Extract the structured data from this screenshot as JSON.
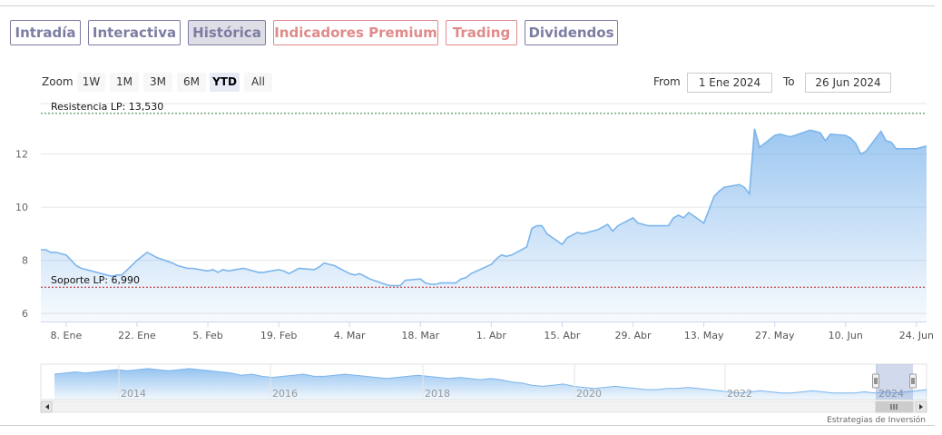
{
  "tabs": [
    {
      "label": "Intradía",
      "color": "#7d7da3",
      "active": false
    },
    {
      "label": "Interactiva",
      "color": "#7d7da3",
      "active": false
    },
    {
      "label": "Histórica",
      "color": "#7d7da3",
      "active": true
    },
    {
      "label": "Indicadores Premium",
      "color": "#e08a8a",
      "active": false
    },
    {
      "label": "Trading",
      "color": "#e08a8a",
      "active": false
    },
    {
      "label": "Dividendos",
      "color": "#7d7da3",
      "active": false
    }
  ],
  "zoom": {
    "label": "Zoom",
    "buttons": [
      "1W",
      "1M",
      "3M",
      "6M",
      "YTD",
      "All"
    ],
    "active": "YTD"
  },
  "range": {
    "from_label": "From",
    "from_value": "1 Ene 2024",
    "to_label": "To",
    "to_value": "26 Jun 2024"
  },
  "credits": "Estrategias de Inversión",
  "colors": {
    "line": "#7cb5ec",
    "resistance": "#2e7d32",
    "support": "#b71c1c"
  },
  "chart_data": {
    "type": "area",
    "title": "",
    "xlabel": "",
    "ylabel": "",
    "ylim": [
      5.7,
      13.9
    ],
    "xlim": [
      "2024-01-03",
      "2024-06-26"
    ],
    "y_ticks": [
      6,
      8,
      10,
      12
    ],
    "grid": true,
    "x_ticks": [
      {
        "label": "8. Ene",
        "date": "2024-01-08"
      },
      {
        "label": "22. Ene",
        "date": "2024-01-22"
      },
      {
        "label": "5. Feb",
        "date": "2024-02-05"
      },
      {
        "label": "19. Feb",
        "date": "2024-02-19"
      },
      {
        "label": "4. Mar",
        "date": "2024-03-04"
      },
      {
        "label": "18. Mar",
        "date": "2024-03-18"
      },
      {
        "label": "1. Abr",
        "date": "2024-04-01"
      },
      {
        "label": "15. Abr",
        "date": "2024-04-15"
      },
      {
        "label": "29. Abr",
        "date": "2024-04-29"
      },
      {
        "label": "13. May",
        "date": "2024-05-13"
      },
      {
        "label": "27. May",
        "date": "2024-05-27"
      },
      {
        "label": "10. Jun",
        "date": "2024-06-10"
      },
      {
        "label": "24. Jun",
        "date": "2024-06-24"
      }
    ],
    "lines": [
      {
        "label": "Resistencia LP: 13,530",
        "value": 13.53
      },
      {
        "label": "Soporte LP: 6,990",
        "value": 6.99
      }
    ],
    "series": [
      {
        "x": [
          "2024-01-03",
          "2024-01-04",
          "2024-01-05",
          "2024-01-06",
          "2024-01-08",
          "2024-01-09",
          "2024-01-10",
          "2024-01-11",
          "2024-01-12",
          "2024-01-15",
          "2024-01-16",
          "2024-01-17",
          "2024-01-18",
          "2024-01-19",
          "2024-01-22",
          "2024-01-23",
          "2024-01-24",
          "2024-01-25",
          "2024-01-26",
          "2024-01-29",
          "2024-01-30",
          "2024-01-31",
          "2024-02-01",
          "2024-02-02",
          "2024-02-05",
          "2024-02-06",
          "2024-02-07",
          "2024-02-08",
          "2024-02-09",
          "2024-02-12",
          "2024-02-13",
          "2024-02-14",
          "2024-02-15",
          "2024-02-16",
          "2024-02-19",
          "2024-02-20",
          "2024-02-21",
          "2024-02-22",
          "2024-02-23",
          "2024-02-26",
          "2024-02-27",
          "2024-02-28",
          "2024-02-29",
          "2024-03-01",
          "2024-03-04",
          "2024-03-05",
          "2024-03-06",
          "2024-03-07",
          "2024-03-08",
          "2024-03-11",
          "2024-03-12",
          "2024-03-13",
          "2024-03-14",
          "2024-03-15",
          "2024-03-18",
          "2024-03-19",
          "2024-03-20",
          "2024-03-21",
          "2024-03-22",
          "2024-03-25",
          "2024-03-26",
          "2024-03-27",
          "2024-03-28",
          "2024-04-01",
          "2024-04-02",
          "2024-04-03",
          "2024-04-04",
          "2024-04-05",
          "2024-04-08",
          "2024-04-09",
          "2024-04-10",
          "2024-04-11",
          "2024-04-12",
          "2024-04-15",
          "2024-04-16",
          "2024-04-17",
          "2024-04-18",
          "2024-04-19",
          "2024-04-22",
          "2024-04-23",
          "2024-04-24",
          "2024-04-25",
          "2024-04-26",
          "2024-04-29",
          "2024-04-30",
          "2024-05-02",
          "2024-05-03",
          "2024-05-06",
          "2024-05-07",
          "2024-05-08",
          "2024-05-09",
          "2024-05-10",
          "2024-05-13",
          "2024-05-14",
          "2024-05-15",
          "2024-05-16",
          "2024-05-17",
          "2024-05-20",
          "2024-05-21",
          "2024-05-22",
          "2024-05-23",
          "2024-05-24",
          "2024-05-27",
          "2024-05-28",
          "2024-05-29",
          "2024-05-30",
          "2024-05-31",
          "2024-06-03",
          "2024-06-04",
          "2024-06-05",
          "2024-06-06",
          "2024-06-07",
          "2024-06-10",
          "2024-06-11",
          "2024-06-12",
          "2024-06-13",
          "2024-06-14",
          "2024-06-17",
          "2024-06-18",
          "2024-06-19",
          "2024-06-20",
          "2024-06-21",
          "2024-06-24",
          "2024-06-25",
          "2024-06-26"
        ],
        "y": [
          8.4,
          8.4,
          8.3,
          8.3,
          8.2,
          8.0,
          7.8,
          7.7,
          7.65,
          7.5,
          7.45,
          7.4,
          7.45,
          7.45,
          8.0,
          8.15,
          8.3,
          8.2,
          8.1,
          7.9,
          7.8,
          7.75,
          7.7,
          7.7,
          7.6,
          7.65,
          7.55,
          7.65,
          7.6,
          7.7,
          7.65,
          7.6,
          7.55,
          7.55,
          7.65,
          7.6,
          7.5,
          7.6,
          7.7,
          7.65,
          7.75,
          7.9,
          7.85,
          7.8,
          7.5,
          7.45,
          7.5,
          7.4,
          7.3,
          7.1,
          7.05,
          7.05,
          7.05,
          7.25,
          7.3,
          7.15,
          7.1,
          7.1,
          7.15,
          7.15,
          7.3,
          7.35,
          7.5,
          7.85,
          8.05,
          8.2,
          8.15,
          8.2,
          8.5,
          9.2,
          9.3,
          9.3,
          9.0,
          8.6,
          8.85,
          8.95,
          9.05,
          9.0,
          9.15,
          9.25,
          9.35,
          9.1,
          9.3,
          9.6,
          9.4,
          9.3,
          9.3,
          9.3,
          9.6,
          9.7,
          9.6,
          9.8,
          9.4,
          9.9,
          10.4,
          10.6,
          10.75,
          10.85,
          10.75,
          10.5,
          12.95,
          12.25,
          12.7,
          12.75,
          12.7,
          12.65,
          12.7,
          12.9,
          12.85,
          12.8,
          12.5,
          12.75,
          12.7,
          12.6,
          12.4,
          12.0,
          12.1,
          12.85,
          12.5,
          12.45,
          12.2,
          12.2,
          12.2,
          12.25,
          12.3
        ]
      }
    ]
  },
  "navigator": {
    "year_labels": [
      "2014",
      "2016",
      "2018",
      "2020",
      "2022",
      "2024"
    ],
    "series": [
      23,
      24,
      25,
      24,
      25,
      26,
      27,
      26,
      27,
      28,
      27,
      26,
      27,
      28,
      27,
      26,
      25,
      24,
      22,
      23,
      21,
      20,
      21,
      22,
      23,
      21,
      21,
      22,
      23,
      22,
      21,
      20,
      19,
      20,
      21,
      22,
      21,
      20,
      19,
      20,
      19,
      18,
      19,
      18,
      16,
      15,
      13,
      12,
      13,
      14,
      12,
      11,
      10,
      11,
      12,
      11,
      10,
      9,
      9,
      10,
      10,
      11,
      10,
      9,
      8,
      7,
      6,
      7,
      8,
      7,
      6,
      6,
      7,
      8,
      7,
      6,
      6,
      6,
      7,
      6,
      7,
      6,
      7,
      8,
      9
    ]
  }
}
